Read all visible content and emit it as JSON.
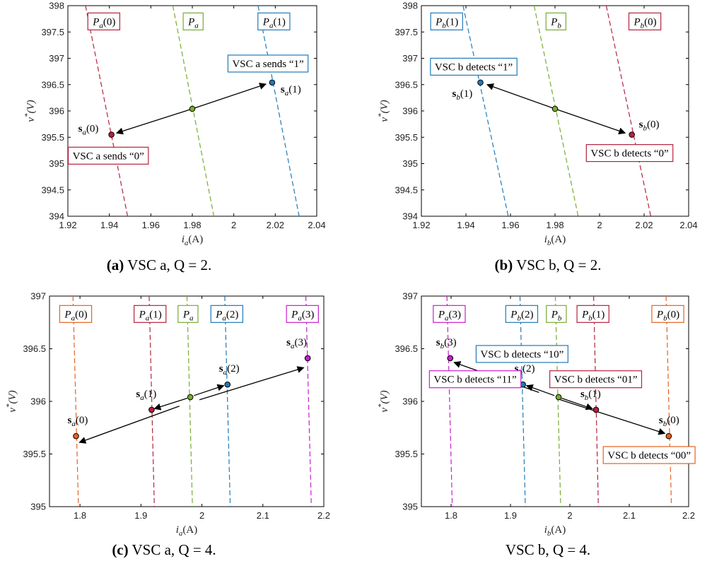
{
  "captions": [
    {
      "prefix": "(a)",
      "text": "VSC a, Q = 2."
    },
    {
      "prefix": "(b)",
      "text": "VSC b, Q = 2."
    },
    {
      "prefix": "(c)",
      "text": "VSC a, Q = 4."
    },
    {
      "prefix": "",
      "text": "VSC b, Q = 4."
    }
  ],
  "colors": {
    "red": "#b5223e",
    "green": "#77ac30",
    "blue": "#1f7ab8",
    "orange": "#e7621e",
    "magenta": "#c81ecd"
  },
  "chart_data": [
    {
      "type": "line",
      "xlabel": "i_a(A)",
      "ylabel": "v*(V)",
      "xlim": [
        1.92,
        2.04
      ],
      "ylim": [
        394,
        398
      ],
      "xticks": [
        1.92,
        1.94,
        1.96,
        1.98,
        2.0,
        2.02,
        2.04
      ],
      "xtick_labels": [
        "1.92",
        "1.94",
        "1.96",
        "1.98",
        "2",
        "2.02",
        "2.04"
      ],
      "yticks": [
        394,
        394.5,
        395,
        395.5,
        396,
        396.5,
        397,
        397.5,
        398
      ],
      "ytick_labels": [
        "394",
        "394.5",
        "395",
        "395.5",
        "396",
        "396.5",
        "397",
        "397.5",
        "398"
      ],
      "grid": false,
      "series": [
        {
          "name": "P_a(0)",
          "color": "red",
          "x": [
            1.9285,
            1.9488
          ],
          "y": [
            398,
            394
          ]
        },
        {
          "name": "P_a^n",
          "color": "green",
          "x": [
            1.9706,
            1.9904
          ],
          "y": [
            398,
            394
          ]
        },
        {
          "name": "P_a(1)",
          "color": "blue",
          "x": [
            2.0117,
            2.0315
          ],
          "y": [
            398,
            394
          ]
        }
      ],
      "points": [
        {
          "label": "s_a(0)",
          "x": 1.941,
          "y": 395.55,
          "color": "red"
        },
        {
          "label": "",
          "x": 1.98,
          "y": 396.04,
          "color": "green"
        },
        {
          "label": "s_a(1)",
          "x": 2.0185,
          "y": 396.54,
          "color": "blue"
        }
      ],
      "arrows": [
        {
          "from": [
            1.98,
            396.04
          ],
          "to": [
            1.9435,
            395.58
          ]
        },
        {
          "from": [
            1.98,
            396.04
          ],
          "to": [
            2.0155,
            396.51
          ]
        }
      ],
      "annotations": [
        {
          "text": "P_a(0)",
          "color": "red",
          "x": 1.9375,
          "y": 397.7
        },
        {
          "text": "P_a^n",
          "color": "green",
          "x": 1.9805,
          "y": 397.7
        },
        {
          "text": "P_a(1)",
          "color": "blue",
          "x": 2.0195,
          "y": 397.7
        },
        {
          "text": "VSC a sends “1”",
          "color": "blue",
          "x": 2.0165,
          "y": 396.9
        },
        {
          "text": "VSC a sends “0”",
          "color": "red",
          "x": 1.9395,
          "y": 395.15
        }
      ]
    },
    {
      "type": "line",
      "xlabel": "i_b(A)",
      "ylabel": "v*(V)",
      "xlim": [
        1.92,
        2.04
      ],
      "ylim": [
        394,
        398
      ],
      "xticks": [
        1.92,
        1.94,
        1.96,
        1.98,
        2.0,
        2.02,
        2.04
      ],
      "xtick_labels": [
        "1.92",
        "1.94",
        "1.96",
        "1.98",
        "2",
        "2.02",
        "2.04"
      ],
      "yticks": [
        394,
        394.5,
        395,
        395.5,
        396,
        396.5,
        397,
        397.5,
        398
      ],
      "ytick_labels": [
        "394",
        "394.5",
        "395",
        "395.5",
        "396",
        "396.5",
        "397",
        "397.5",
        "398"
      ],
      "grid": false,
      "series": [
        {
          "name": "P_b(1)",
          "color": "blue",
          "x": [
            1.9387,
            1.959
          ],
          "y": [
            398,
            394
          ]
        },
        {
          "name": "P_b^n",
          "color": "green",
          "x": [
            1.9706,
            1.9904
          ],
          "y": [
            398,
            394
          ]
        },
        {
          "name": "P_b(0)",
          "color": "red",
          "x": [
            2.003,
            2.023
          ],
          "y": [
            398,
            394
          ]
        }
      ],
      "points": [
        {
          "label": "s_b(1)",
          "x": 1.9465,
          "y": 396.54,
          "color": "blue"
        },
        {
          "label": "",
          "x": 1.98,
          "y": 396.04,
          "color": "green"
        },
        {
          "label": "s_b(0)",
          "x": 2.0145,
          "y": 395.55,
          "color": "red"
        }
      ],
      "arrows": [
        {
          "from": [
            1.98,
            396.04
          ],
          "to": [
            1.9495,
            396.5
          ]
        },
        {
          "from": [
            1.98,
            396.04
          ],
          "to": [
            2.0115,
            395.58
          ]
        }
      ],
      "annotations": [
        {
          "text": "P_b(1)",
          "color": "blue",
          "x": 1.9315,
          "y": 397.7
        },
        {
          "text": "P_b^n",
          "color": "green",
          "x": 1.9805,
          "y": 397.7
        },
        {
          "text": "P_b(0)",
          "color": "red",
          "x": 2.0205,
          "y": 397.7
        },
        {
          "text": "VSC b detects “1”",
          "color": "blue",
          "x": 1.9435,
          "y": 396.84
        },
        {
          "text": "VSC b detects “0”",
          "color": "red",
          "x": 2.0135,
          "y": 395.2
        }
      ]
    },
    {
      "type": "line",
      "xlabel": "i_a(A)",
      "ylabel": "v*(V)",
      "xlim": [
        1.75,
        2.2
      ],
      "ylim": [
        395,
        397
      ],
      "xticks": [
        1.8,
        1.9,
        2.0,
        2.1,
        2.2
      ],
      "xtick_labels": [
        "1.8",
        "1.9",
        "2",
        "2.1",
        "2.2"
      ],
      "yticks": [
        395,
        395.5,
        396,
        396.5,
        397
      ],
      "ytick_labels": [
        "395",
        "395.5",
        "396",
        "396.5",
        "397"
      ],
      "grid": false,
      "series": [
        {
          "name": "P_a(0)",
          "color": "orange",
          "x": [
            1.7885,
            1.7975
          ],
          "y": [
            397,
            395
          ]
        },
        {
          "name": "P_a(1)",
          "color": "red",
          "x": [
            1.9135,
            1.922
          ],
          "y": [
            397,
            395
          ]
        },
        {
          "name": "P_a^n",
          "color": "green",
          "x": [
            1.9755,
            1.9845
          ],
          "y": [
            397,
            395
          ]
        },
        {
          "name": "P_a(2)",
          "color": "blue",
          "x": [
            2.0375,
            2.0465
          ],
          "y": [
            397,
            395
          ]
        },
        {
          "name": "P_a(3)",
          "color": "magenta",
          "x": [
            2.1705,
            2.1795
          ],
          "y": [
            397,
            395
          ]
        }
      ],
      "points": [
        {
          "label": "s_a(0)",
          "x": 1.7935,
          "y": 395.67,
          "color": "orange"
        },
        {
          "label": "s_a(1)",
          "x": 1.9175,
          "y": 395.92,
          "color": "red"
        },
        {
          "label": "",
          "x": 1.981,
          "y": 396.04,
          "color": "green"
        },
        {
          "label": "s_a(2)",
          "x": 2.042,
          "y": 396.16,
          "color": "blue"
        },
        {
          "label": "s_a(3)",
          "x": 2.1735,
          "y": 396.41,
          "color": "magenta"
        }
      ],
      "arrows": [
        {
          "from": [
            1.976,
            396.03
          ],
          "to": [
            1.922,
            395.93
          ]
        },
        {
          "from": [
            1.987,
            396.055
          ],
          "to": [
            2.036,
            396.15
          ]
        },
        {
          "from": [
            1.996,
            396.015
          ],
          "to": [
            2.167,
            396.32
          ]
        },
        {
          "from": [
            1.963,
            395.955
          ],
          "to": [
            1.799,
            395.61
          ]
        }
      ],
      "annotations": [
        {
          "text": "P_a(0)",
          "color": "orange",
          "x": 1.7935,
          "y": 396.83
        },
        {
          "text": "P_a(1)",
          "color": "red",
          "x": 1.9155,
          "y": 396.83
        },
        {
          "text": "P_a^n",
          "color": "green",
          "x": 1.9775,
          "y": 396.83
        },
        {
          "text": "P_a(2)",
          "color": "blue",
          "x": 2.0415,
          "y": 396.83
        },
        {
          "text": "P_a(3)",
          "color": "magenta",
          "x": 2.1655,
          "y": 396.83
        }
      ]
    },
    {
      "type": "line",
      "xlabel": "i_b(A)",
      "ylabel": "v*(V)",
      "xlim": [
        1.75,
        2.2
      ],
      "ylim": [
        395,
        397
      ],
      "xticks": [
        1.8,
        1.9,
        2.0,
        2.1,
        2.2
      ],
      "xtick_labels": [
        "1.8",
        "1.9",
        "2",
        "2.1",
        "2.2"
      ],
      "yticks": [
        395,
        395.5,
        396,
        396.5,
        397
      ],
      "ytick_labels": [
        "395",
        "395.5",
        "396",
        "396.5",
        "397"
      ],
      "grid": false,
      "series": [
        {
          "name": "P_a(3)",
          "color": "magenta",
          "x": [
            1.793,
            1.802
          ],
          "y": [
            397,
            395
          ]
        },
        {
          "name": "P_b(2)",
          "color": "blue",
          "x": [
            1.916,
            1.925
          ],
          "y": [
            397,
            395
          ]
        },
        {
          "name": "P_b^n",
          "color": "green",
          "x": [
            1.9755,
            1.9845
          ],
          "y": [
            397,
            395
          ]
        },
        {
          "name": "P_b(1)",
          "color": "red",
          "x": [
            2.04,
            2.048
          ],
          "y": [
            397,
            395
          ]
        },
        {
          "name": "P_b(0)",
          "color": "orange",
          "x": [
            2.162,
            2.171
          ],
          "y": [
            397,
            395
          ]
        }
      ],
      "points": [
        {
          "label": "s_b(3)",
          "x": 1.7985,
          "y": 396.41,
          "color": "magenta"
        },
        {
          "label": "s_b(2)",
          "x": 1.921,
          "y": 396.16,
          "color": "blue"
        },
        {
          "label": "",
          "x": 1.981,
          "y": 396.04,
          "color": "green"
        },
        {
          "label": "s_b(1)",
          "x": 2.044,
          "y": 395.92,
          "color": "red"
        },
        {
          "label": "s_b(0)",
          "x": 2.1665,
          "y": 395.67,
          "color": "orange"
        }
      ],
      "arrows": [
        {
          "from": [
            1.974,
            396.055
          ],
          "to": [
            1.927,
            396.15
          ]
        },
        {
          "from": [
            1.986,
            396.03
          ],
          "to": [
            2.038,
            395.93
          ]
        },
        {
          "from": [
            1.948,
            396.085
          ],
          "to": [
            1.805,
            396.37
          ]
        },
        {
          "from": [
            1.984,
            396.015
          ],
          "to": [
            2.16,
            395.695
          ]
        }
      ],
      "annotations": [
        {
          "text": "P_a(3)",
          "color": "magenta",
          "x": 1.7975,
          "y": 396.83
        },
        {
          "text": "P_b(2)",
          "color": "blue",
          "x": 1.9195,
          "y": 396.83
        },
        {
          "text": "P_b^n",
          "color": "green",
          "x": 1.9775,
          "y": 396.83
        },
        {
          "text": "P_b(1)",
          "color": "red",
          "x": 2.0395,
          "y": 396.83
        },
        {
          "text": "P_b(0)",
          "color": "orange",
          "x": 2.1655,
          "y": 396.83
        },
        {
          "text": "VSC b detects “10”",
          "color": "blue",
          "x": 1.9195,
          "y": 396.45
        },
        {
          "text": "VSC b detects “01”",
          "color": "red",
          "x": 2.0435,
          "y": 396.21
        },
        {
          "text": "VSC b detects “11”",
          "color": "magenta",
          "x": 1.8405,
          "y": 396.21
        },
        {
          "text": "VSC b detects “00”",
          "color": "orange",
          "x": 2.1335,
          "y": 395.49
        }
      ]
    }
  ]
}
